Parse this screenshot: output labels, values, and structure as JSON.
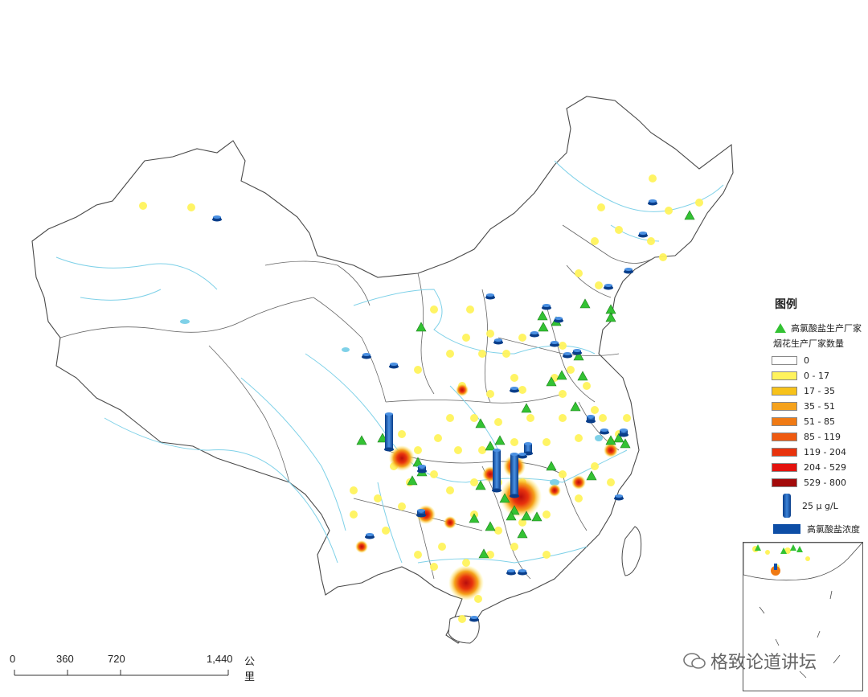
{
  "legend": {
    "title": "图例",
    "factory_label": "高氯酸盐生产厂家",
    "fireworks_label": "烟花生产厂家数量",
    "classes": [
      {
        "label": "0",
        "color": "#ffffff"
      },
      {
        "label": "0 - 17",
        "color": "#fff35c"
      },
      {
        "label": "17 - 35",
        "color": "#f7c21a"
      },
      {
        "label": "35 - 51",
        "color": "#f5a21c"
      },
      {
        "label": "51 - 85",
        "color": "#f07a14"
      },
      {
        "label": "85 - 119",
        "color": "#ef5a10"
      },
      {
        "label": "119 - 204",
        "color": "#e8330d"
      },
      {
        "label": "204 - 529",
        "color": "#e4120e"
      },
      {
        "label": "529 - 800",
        "color": "#a30a0a"
      }
    ],
    "cylinder_label": "25 μ g/L",
    "concentration_label": "高氯酸盐浓度"
  },
  "scalebar": {
    "ticks": [
      "0",
      "360",
      "720",
      "1,440"
    ],
    "unit": "公里"
  },
  "watermark": {
    "text": "格致论道讲坛"
  },
  "colors": {
    "border": "#4a4a4a",
    "river": "#7fd1e8",
    "factory": "#33c233",
    "concentration": "#0d4ea6"
  },
  "icons": {
    "factory": "green-triangle",
    "concentration": "blue-cylinder",
    "watermark": "wechat-icon"
  }
}
